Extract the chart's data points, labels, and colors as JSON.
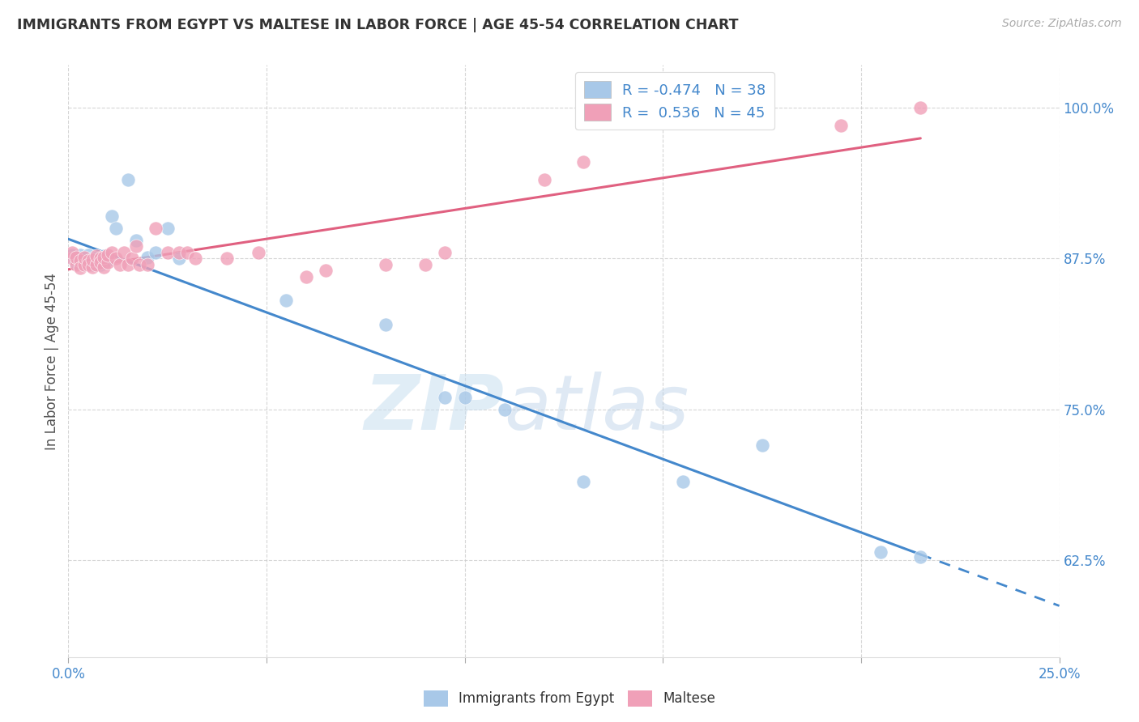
{
  "title": "IMMIGRANTS FROM EGYPT VS MALTESE IN LABOR FORCE | AGE 45-54 CORRELATION CHART",
  "source": "Source: ZipAtlas.com",
  "ylabel": "In Labor Force | Age 45-54",
  "xlim": [
    0.0,
    0.25
  ],
  "ylim": [
    0.545,
    1.035
  ],
  "xticks": [
    0.0,
    0.05,
    0.1,
    0.15,
    0.2,
    0.25
  ],
  "xticklabels": [
    "0.0%",
    "",
    "",
    "",
    "",
    "25.0%"
  ],
  "yticks": [
    0.625,
    0.75,
    0.875,
    1.0
  ],
  "yticklabels": [
    "62.5%",
    "75.0%",
    "87.5%",
    "100.0%"
  ],
  "blue_R": -0.474,
  "blue_N": 38,
  "pink_R": 0.536,
  "pink_N": 45,
  "blue_color": "#a8c8e8",
  "pink_color": "#f0a0b8",
  "blue_line_color": "#4488cc",
  "pink_line_color": "#e06080",
  "blue_scatter_x": [
    0.001,
    0.001,
    0.002,
    0.002,
    0.003,
    0.003,
    0.004,
    0.004,
    0.005,
    0.005,
    0.005,
    0.006,
    0.006,
    0.007,
    0.007,
    0.008,
    0.008,
    0.009,
    0.009,
    0.01,
    0.011,
    0.012,
    0.015,
    0.017,
    0.02,
    0.022,
    0.025,
    0.028,
    0.055,
    0.08,
    0.095,
    0.1,
    0.11,
    0.13,
    0.155,
    0.175,
    0.205,
    0.215
  ],
  "blue_scatter_y": [
    0.875,
    0.878,
    0.872,
    0.876,
    0.873,
    0.878,
    0.87,
    0.876,
    0.872,
    0.874,
    0.878,
    0.87,
    0.875,
    0.872,
    0.876,
    0.87,
    0.875,
    0.872,
    0.877,
    0.874,
    0.91,
    0.9,
    0.94,
    0.89,
    0.876,
    0.88,
    0.9,
    0.875,
    0.84,
    0.82,
    0.76,
    0.76,
    0.75,
    0.69,
    0.69,
    0.72,
    0.632,
    0.628
  ],
  "pink_scatter_x": [
    0.001,
    0.001,
    0.002,
    0.002,
    0.003,
    0.003,
    0.004,
    0.004,
    0.005,
    0.005,
    0.006,
    0.006,
    0.007,
    0.007,
    0.008,
    0.008,
    0.009,
    0.009,
    0.01,
    0.01,
    0.011,
    0.012,
    0.013,
    0.014,
    0.015,
    0.016,
    0.017,
    0.018,
    0.02,
    0.022,
    0.025,
    0.028,
    0.03,
    0.032,
    0.04,
    0.048,
    0.06,
    0.065,
    0.08,
    0.09,
    0.095,
    0.12,
    0.13,
    0.195,
    0.215
  ],
  "pink_scatter_y": [
    0.875,
    0.88,
    0.87,
    0.876,
    0.873,
    0.867,
    0.87,
    0.876,
    0.873,
    0.87,
    0.868,
    0.874,
    0.87,
    0.877,
    0.875,
    0.872,
    0.868,
    0.876,
    0.872,
    0.878,
    0.88,
    0.875,
    0.87,
    0.88,
    0.87,
    0.875,
    0.885,
    0.87,
    0.87,
    0.9,
    0.88,
    0.88,
    0.88,
    0.875,
    0.875,
    0.88,
    0.86,
    0.865,
    0.87,
    0.87,
    0.88,
    0.94,
    0.955,
    0.985,
    1.0
  ],
  "watermark_zip": "ZIP",
  "watermark_atlas": "atlas",
  "background_color": "#ffffff",
  "grid_color": "#cccccc"
}
